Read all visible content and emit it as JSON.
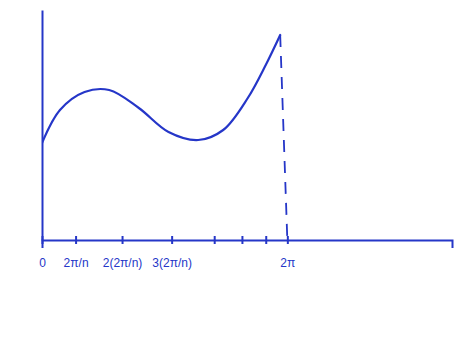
{
  "chart_data": {
    "type": "line",
    "x": [
      0,
      0.46,
      1.09,
      1.72,
      2.48,
      3.24,
      4.0,
      4.64,
      5.27,
      5.73,
      6.1
    ],
    "values": [
      97,
      130,
      148,
      150,
      132,
      108,
      100,
      110,
      142,
      175,
      205
    ],
    "color": "#2536c8",
    "xlim": [
      0,
      10.5
    ],
    "ylim": [
      0,
      230
    ],
    "xticks": [
      0,
      {
        "value": 0.86,
        "label": "2π/n"
      },
      {
        "value": 2.05,
        "label": "2(2π/n)"
      },
      {
        "value": 3.32,
        "label": "3(2π/n)"
      },
      {
        "value": 4.41,
        "label": null
      },
      {
        "value": 5.12,
        "label": null
      },
      {
        "value": 5.73,
        "label": null
      },
      {
        "value": 6.283,
        "label": "2π"
      }
    ],
    "yticks": [],
    "tick_labels": "x",
    "grid": false
  }
}
